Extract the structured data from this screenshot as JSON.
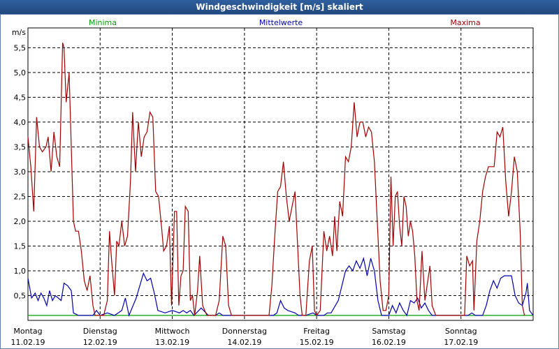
{
  "title": "Windgeschwindigkeit [m/s] skaliert",
  "chart_data": {
    "type": "line",
    "title": "Windgeschwindigkeit [m/s] skaliert",
    "ylabel": "m/s",
    "ylim": [
      0,
      5.9
    ],
    "yticks": [
      "0,5",
      "1,0",
      "1,5",
      "2,0",
      "2,5",
      "3,0",
      "3,5",
      "4,0",
      "4,5",
      "5,0",
      "5,5"
    ],
    "ytick_values": [
      0.5,
      1.0,
      1.5,
      2.0,
      2.5,
      3.0,
      3.5,
      4.0,
      4.5,
      5.0,
      5.5
    ],
    "xlim": [
      0,
      7
    ],
    "x_categories": [
      {
        "day": "Montag",
        "date": "11.02.19"
      },
      {
        "day": "Dienstag",
        "date": "12.02.19"
      },
      {
        "day": "Mittwoch",
        "date": "13.02.19"
      },
      {
        "day": "Donnerstag",
        "date": "14.02.19"
      },
      {
        "day": "Freitag",
        "date": "15.02.19"
      },
      {
        "day": "Samstag",
        "date": "16.02.19"
      },
      {
        "day": "Sonntag",
        "date": "17.02.19"
      }
    ],
    "grid": true,
    "series": [
      {
        "name": "Minima",
        "color": "#00a000",
        "values": [
          [
            0,
            0.1
          ],
          [
            7,
            0.1
          ]
        ]
      },
      {
        "name": "Mittelwerte",
        "color": "#0000b0",
        "values": [
          [
            0.0,
            0.85
          ],
          [
            0.05,
            0.45
          ],
          [
            0.1,
            0.55
          ],
          [
            0.14,
            0.4
          ],
          [
            0.18,
            0.55
          ],
          [
            0.22,
            0.45
          ],
          [
            0.26,
            0.3
          ],
          [
            0.3,
            0.6
          ],
          [
            0.34,
            0.4
          ],
          [
            0.38,
            0.5
          ],
          [
            0.42,
            0.45
          ],
          [
            0.46,
            0.4
          ],
          [
            0.5,
            0.75
          ],
          [
            0.55,
            0.7
          ],
          [
            0.6,
            0.6
          ],
          [
            0.63,
            0.15
          ],
          [
            0.7,
            0.1
          ],
          [
            0.8,
            0.1
          ],
          [
            0.9,
            0.1
          ],
          [
            0.95,
            0.2
          ],
          [
            1.0,
            0.1
          ],
          [
            1.1,
            0.15
          ],
          [
            1.2,
            0.1
          ],
          [
            1.3,
            0.2
          ],
          [
            1.35,
            0.45
          ],
          [
            1.4,
            0.1
          ],
          [
            1.5,
            0.45
          ],
          [
            1.55,
            0.7
          ],
          [
            1.6,
            0.95
          ],
          [
            1.65,
            0.8
          ],
          [
            1.7,
            0.85
          ],
          [
            1.75,
            0.55
          ],
          [
            1.8,
            0.2
          ],
          [
            1.9,
            0.15
          ],
          [
            2.0,
            0.2
          ],
          [
            2.1,
            0.15
          ],
          [
            2.15,
            0.2
          ],
          [
            2.2,
            0.15
          ],
          [
            2.25,
            0.2
          ],
          [
            2.3,
            0.1
          ],
          [
            2.4,
            0.25
          ],
          [
            2.5,
            0.1
          ],
          [
            2.6,
            0.1
          ],
          [
            2.65,
            0.15
          ],
          [
            2.7,
            0.1
          ],
          [
            2.8,
            0.1
          ],
          [
            3.0,
            0.1
          ],
          [
            3.3,
            0.1
          ],
          [
            3.4,
            0.1
          ],
          [
            3.45,
            0.15
          ],
          [
            3.5,
            0.4
          ],
          [
            3.55,
            0.25
          ],
          [
            3.6,
            0.2
          ],
          [
            3.7,
            0.15
          ],
          [
            3.75,
            0.1
          ],
          [
            3.85,
            0.1
          ],
          [
            3.95,
            0.15
          ],
          [
            4.0,
            0.1
          ],
          [
            4.1,
            0.1
          ],
          [
            4.15,
            0.15
          ],
          [
            4.2,
            0.15
          ],
          [
            4.3,
            0.4
          ],
          [
            4.35,
            0.7
          ],
          [
            4.4,
            1.0
          ],
          [
            4.45,
            1.1
          ],
          [
            4.5,
            1.0
          ],
          [
            4.55,
            1.2
          ],
          [
            4.6,
            1.05
          ],
          [
            4.65,
            1.25
          ],
          [
            4.7,
            0.9
          ],
          [
            4.75,
            1.25
          ],
          [
            4.8,
            1.0
          ],
          [
            4.85,
            0.4
          ],
          [
            4.9,
            0.1
          ],
          [
            5.0,
            0.1
          ],
          [
            5.05,
            0.3
          ],
          [
            5.1,
            0.15
          ],
          [
            5.15,
            0.35
          ],
          [
            5.2,
            0.2
          ],
          [
            5.25,
            0.1
          ],
          [
            5.3,
            0.4
          ],
          [
            5.35,
            0.35
          ],
          [
            5.4,
            0.45
          ],
          [
            5.45,
            0.25
          ],
          [
            5.5,
            0.35
          ],
          [
            5.55,
            0.2
          ],
          [
            5.6,
            0.1
          ],
          [
            5.7,
            0.1
          ],
          [
            5.8,
            0.1
          ],
          [
            5.9,
            0.1
          ],
          [
            6.1,
            0.1
          ],
          [
            6.15,
            0.15
          ],
          [
            6.2,
            0.1
          ],
          [
            6.3,
            0.1
          ],
          [
            6.35,
            0.3
          ],
          [
            6.4,
            0.6
          ],
          [
            6.45,
            0.8
          ],
          [
            6.5,
            0.65
          ],
          [
            6.55,
            0.85
          ],
          [
            6.6,
            0.9
          ],
          [
            6.65,
            0.9
          ],
          [
            6.7,
            0.9
          ],
          [
            6.75,
            0.5
          ],
          [
            6.8,
            0.35
          ],
          [
            6.85,
            0.3
          ],
          [
            6.9,
            0.55
          ],
          [
            6.92,
            0.75
          ],
          [
            6.95,
            0.2
          ],
          [
            7.0,
            0.1
          ]
        ]
      },
      {
        "name": "Maxima",
        "color": "#a00000",
        "values": [
          [
            0.0,
            3.7
          ],
          [
            0.04,
            3.1
          ],
          [
            0.08,
            2.2
          ],
          [
            0.12,
            4.1
          ],
          [
            0.16,
            3.5
          ],
          [
            0.2,
            3.4
          ],
          [
            0.25,
            3.5
          ],
          [
            0.28,
            3.7
          ],
          [
            0.32,
            3.0
          ],
          [
            0.36,
            3.8
          ],
          [
            0.4,
            3.3
          ],
          [
            0.44,
            3.1
          ],
          [
            0.48,
            5.6
          ],
          [
            0.5,
            5.5
          ],
          [
            0.53,
            4.4
          ],
          [
            0.57,
            5.0
          ],
          [
            0.6,
            3.5
          ],
          [
            0.63,
            2.0
          ],
          [
            0.66,
            1.8
          ],
          [
            0.7,
            1.8
          ],
          [
            0.74,
            1.4
          ],
          [
            0.78,
            0.8
          ],
          [
            0.82,
            0.6
          ],
          [
            0.86,
            0.9
          ],
          [
            0.9,
            0.3
          ],
          [
            0.93,
            0.1
          ],
          [
            1.0,
            0.1
          ],
          [
            1.05,
            0.1
          ],
          [
            1.1,
            0.4
          ],
          [
            1.13,
            1.8
          ],
          [
            1.16,
            1.2
          ],
          [
            1.2,
            0.5
          ],
          [
            1.23,
            1.6
          ],
          [
            1.26,
            1.5
          ],
          [
            1.3,
            2.0
          ],
          [
            1.34,
            1.5
          ],
          [
            1.38,
            1.7
          ],
          [
            1.42,
            2.8
          ],
          [
            1.45,
            4.2
          ],
          [
            1.49,
            3.0
          ],
          [
            1.53,
            4.0
          ],
          [
            1.57,
            3.3
          ],
          [
            1.61,
            3.7
          ],
          [
            1.65,
            3.8
          ],
          [
            1.69,
            4.2
          ],
          [
            1.73,
            4.1
          ],
          [
            1.77,
            2.6
          ],
          [
            1.81,
            2.5
          ],
          [
            1.85,
            1.9
          ],
          [
            1.88,
            1.4
          ],
          [
            1.92,
            1.5
          ],
          [
            1.96,
            1.9
          ],
          [
            1.99,
            0.3
          ],
          [
            2.03,
            2.2
          ],
          [
            2.06,
            2.2
          ],
          [
            2.09,
            0.3
          ],
          [
            2.12,
            0.9
          ],
          [
            2.15,
            1.0
          ],
          [
            2.18,
            2.3
          ],
          [
            2.22,
            2.2
          ],
          [
            2.25,
            0.4
          ],
          [
            2.28,
            0.5
          ],
          [
            2.31,
            0.1
          ],
          [
            2.35,
            0.6
          ],
          [
            2.38,
            1.3
          ],
          [
            2.42,
            0.3
          ],
          [
            2.48,
            0.1
          ],
          [
            2.55,
            0.1
          ],
          [
            2.6,
            0.1
          ],
          [
            2.65,
            0.4
          ],
          [
            2.7,
            1.7
          ],
          [
            2.74,
            1.5
          ],
          [
            2.78,
            0.3
          ],
          [
            2.82,
            0.1
          ],
          [
            3.0,
            0.1
          ],
          [
            3.2,
            0.1
          ],
          [
            3.3,
            0.1
          ],
          [
            3.34,
            0.1
          ],
          [
            3.38,
            0.7
          ],
          [
            3.42,
            1.7
          ],
          [
            3.46,
            2.6
          ],
          [
            3.5,
            2.7
          ],
          [
            3.54,
            3.2
          ],
          [
            3.58,
            2.5
          ],
          [
            3.62,
            2.0
          ],
          [
            3.66,
            2.3
          ],
          [
            3.7,
            2.6
          ],
          [
            3.74,
            1.4
          ],
          [
            3.77,
            0.5
          ],
          [
            3.8,
            0.1
          ],
          [
            3.85,
            0.1
          ],
          [
            3.9,
            1.2
          ],
          [
            3.94,
            1.5
          ],
          [
            3.97,
            0.2
          ],
          [
            4.0,
            0.1
          ],
          [
            4.05,
            0.2
          ],
          [
            4.1,
            1.8
          ],
          [
            4.14,
            1.4
          ],
          [
            4.18,
            1.7
          ],
          [
            4.22,
            1.3
          ],
          [
            4.25,
            2.1
          ],
          [
            4.28,
            1.4
          ],
          [
            4.32,
            2.4
          ],
          [
            4.36,
            2.1
          ],
          [
            4.4,
            3.3
          ],
          [
            4.44,
            3.2
          ],
          [
            4.48,
            3.5
          ],
          [
            4.52,
            4.4
          ],
          [
            4.56,
            3.7
          ],
          [
            4.6,
            4.0
          ],
          [
            4.64,
            4.0
          ],
          [
            4.68,
            3.7
          ],
          [
            4.72,
            3.9
          ],
          [
            4.76,
            3.8
          ],
          [
            4.8,
            3.2
          ],
          [
            4.84,
            2.0
          ],
          [
            4.88,
            0.8
          ],
          [
            4.92,
            0.2
          ],
          [
            4.96,
            0.2
          ],
          [
            5.0,
            0.5
          ],
          [
            5.03,
            2.9
          ],
          [
            5.06,
            1.5
          ],
          [
            5.09,
            2.5
          ],
          [
            5.12,
            2.6
          ],
          [
            5.15,
            1.9
          ],
          [
            5.18,
            1.5
          ],
          [
            5.21,
            2.5
          ],
          [
            5.24,
            2.3
          ],
          [
            5.27,
            1.7
          ],
          [
            5.3,
            2.0
          ],
          [
            5.33,
            1.8
          ],
          [
            5.36,
            1.3
          ],
          [
            5.39,
            0.4
          ],
          [
            5.42,
            0.2
          ],
          [
            5.46,
            1.4
          ],
          [
            5.5,
            0.4
          ],
          [
            5.54,
            0.8
          ],
          [
            5.57,
            1.1
          ],
          [
            5.6,
            0.3
          ],
          [
            5.65,
            0.1
          ],
          [
            5.7,
            0.1
          ],
          [
            5.8,
            0.1
          ],
          [
            5.9,
            0.1
          ],
          [
            6.0,
            0.1
          ],
          [
            6.05,
            0.1
          ],
          [
            6.08,
            1.3
          ],
          [
            6.12,
            1.1
          ],
          [
            6.16,
            1.2
          ],
          [
            6.18,
            0.2
          ],
          [
            6.22,
            1.6
          ],
          [
            6.26,
            2.0
          ],
          [
            6.3,
            2.6
          ],
          [
            6.34,
            2.9
          ],
          [
            6.38,
            3.1
          ],
          [
            6.42,
            3.1
          ],
          [
            6.46,
            3.1
          ],
          [
            6.5,
            3.8
          ],
          [
            6.54,
            3.7
          ],
          [
            6.58,
            3.9
          ],
          [
            6.62,
            2.8
          ],
          [
            6.66,
            2.1
          ],
          [
            6.7,
            2.6
          ],
          [
            6.74,
            3.3
          ],
          [
            6.78,
            3.0
          ],
          [
            6.82,
            1.8
          ],
          [
            6.85,
            0.3
          ],
          [
            6.88,
            0.1
          ]
        ]
      }
    ]
  }
}
